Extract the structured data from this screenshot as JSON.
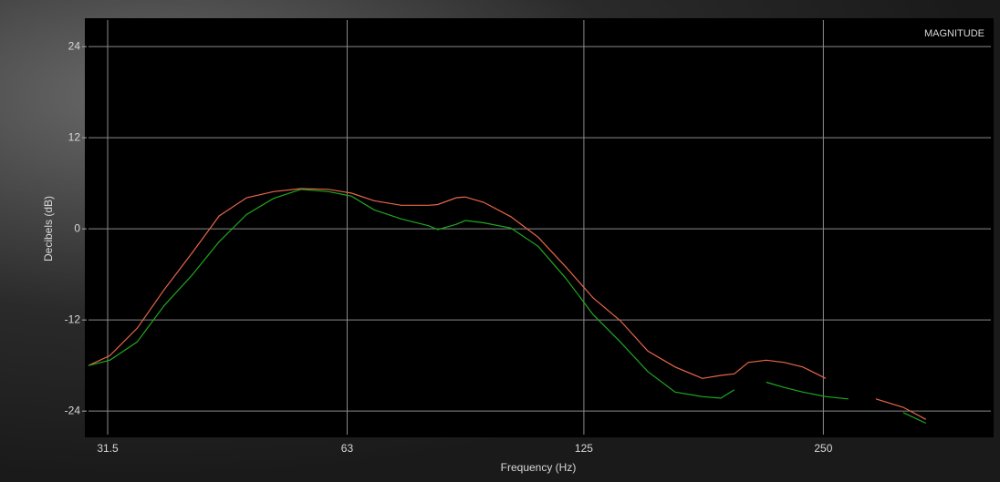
{
  "chart_data": {
    "type": "line",
    "title": "MAGNITUDE",
    "x_label": "Frequency (Hz)",
    "y_label": "Decibels (dB)",
    "x_scale": "log",
    "grid": true,
    "xlim": [
      29.8,
      406
    ],
    "ylim": [
      -27.1,
      27.5
    ],
    "xticks": [
      31.5,
      63,
      125,
      250
    ],
    "yticks": [
      24,
      12,
      0,
      -12,
      -24
    ],
    "x": [
      29.8,
      31.7,
      34.3,
      37.1,
      40.2,
      43.5,
      47.1,
      50.9,
      55.1,
      59.7,
      63.8,
      68.1,
      73.7,
      79.8,
      81.9,
      86.4,
      88.7,
      93.5,
      101.2,
      109.5,
      118.6,
      128.4,
      138.9,
      150.4,
      162.8,
      176.2,
      185.8,
      193.2,
      201.1,
      211.9,
      223.4,
      235.6,
      251.7,
      268.8,
      291.0,
      315.0,
      336.4
    ],
    "series": [
      {
        "color": "#e8664a",
        "values": [
          -18.0,
          -16.7,
          -13.1,
          -8.0,
          -3.2,
          1.7,
          4.1,
          4.9,
          5.3,
          5.2,
          4.7,
          3.7,
          3.1,
          3.1,
          3.2,
          4.1,
          4.2,
          3.5,
          1.6,
          -1.1,
          -5.0,
          -9.1,
          -12.1,
          -16.1,
          -18.2,
          -19.7,
          -19.3,
          -19.1,
          -17.6,
          -17.3,
          -17.6,
          -18.2,
          -19.7,
          null,
          -22.4,
          -23.5,
          -25.1
        ]
      },
      {
        "color": "#1fa81f",
        "values": [
          -18.0,
          -17.3,
          -14.9,
          -10.1,
          -6.1,
          -1.7,
          1.9,
          4.0,
          5.2,
          4.9,
          4.3,
          2.5,
          1.3,
          0.4,
          -0.1,
          0.6,
          1.1,
          0.8,
          0.1,
          -2.3,
          -6.5,
          -11.3,
          -14.9,
          -18.8,
          -21.5,
          -22.1,
          -22.3,
          -21.2,
          null,
          -20.2,
          -20.9,
          -21.5,
          -22.1,
          -22.4,
          null,
          -24.2,
          -25.6
        ]
      }
    ]
  }
}
